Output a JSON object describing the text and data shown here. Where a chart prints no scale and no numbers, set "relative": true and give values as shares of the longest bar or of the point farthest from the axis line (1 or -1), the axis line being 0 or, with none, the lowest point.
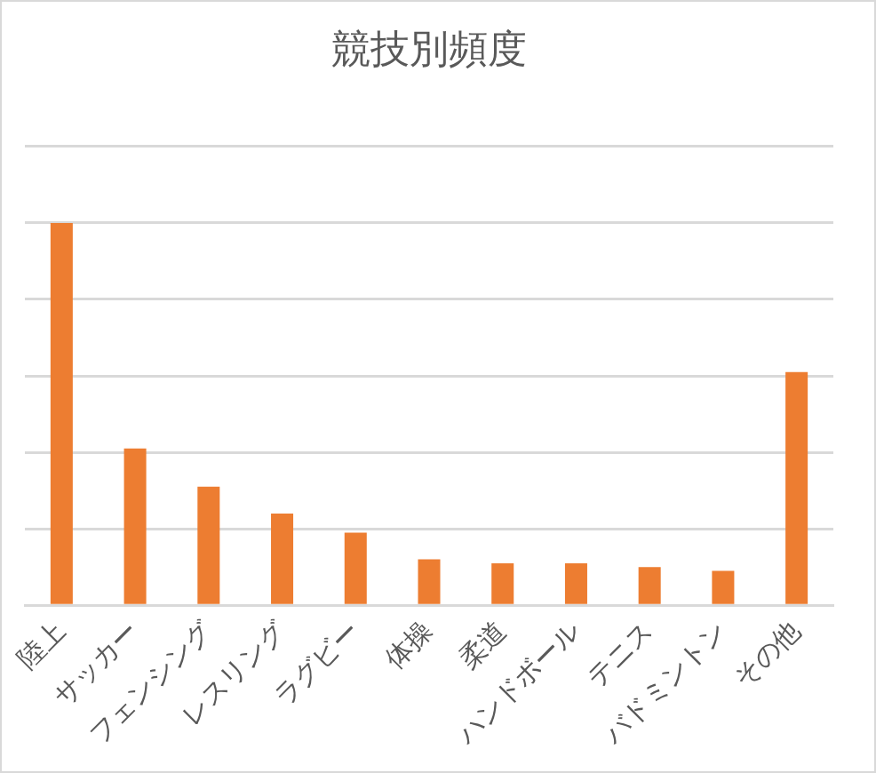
{
  "chart_data": {
    "type": "bar",
    "title": "競技別頻度",
    "categories": [
      "陸上",
      "サッカー",
      "フェンシング",
      "レスリング",
      "ラグビー",
      "体操",
      "柔道",
      "ハンドボール",
      "テニス",
      "バドミントン",
      "その他"
    ],
    "values": [
      1,
      0.41,
      0.31,
      0.24,
      0.19,
      0.12,
      0.11,
      0.11,
      0.1,
      0.09,
      0.61
    ],
    "color": "#ed7d31",
    "relative": true,
    "grid": "y",
    "legend": false
  }
}
